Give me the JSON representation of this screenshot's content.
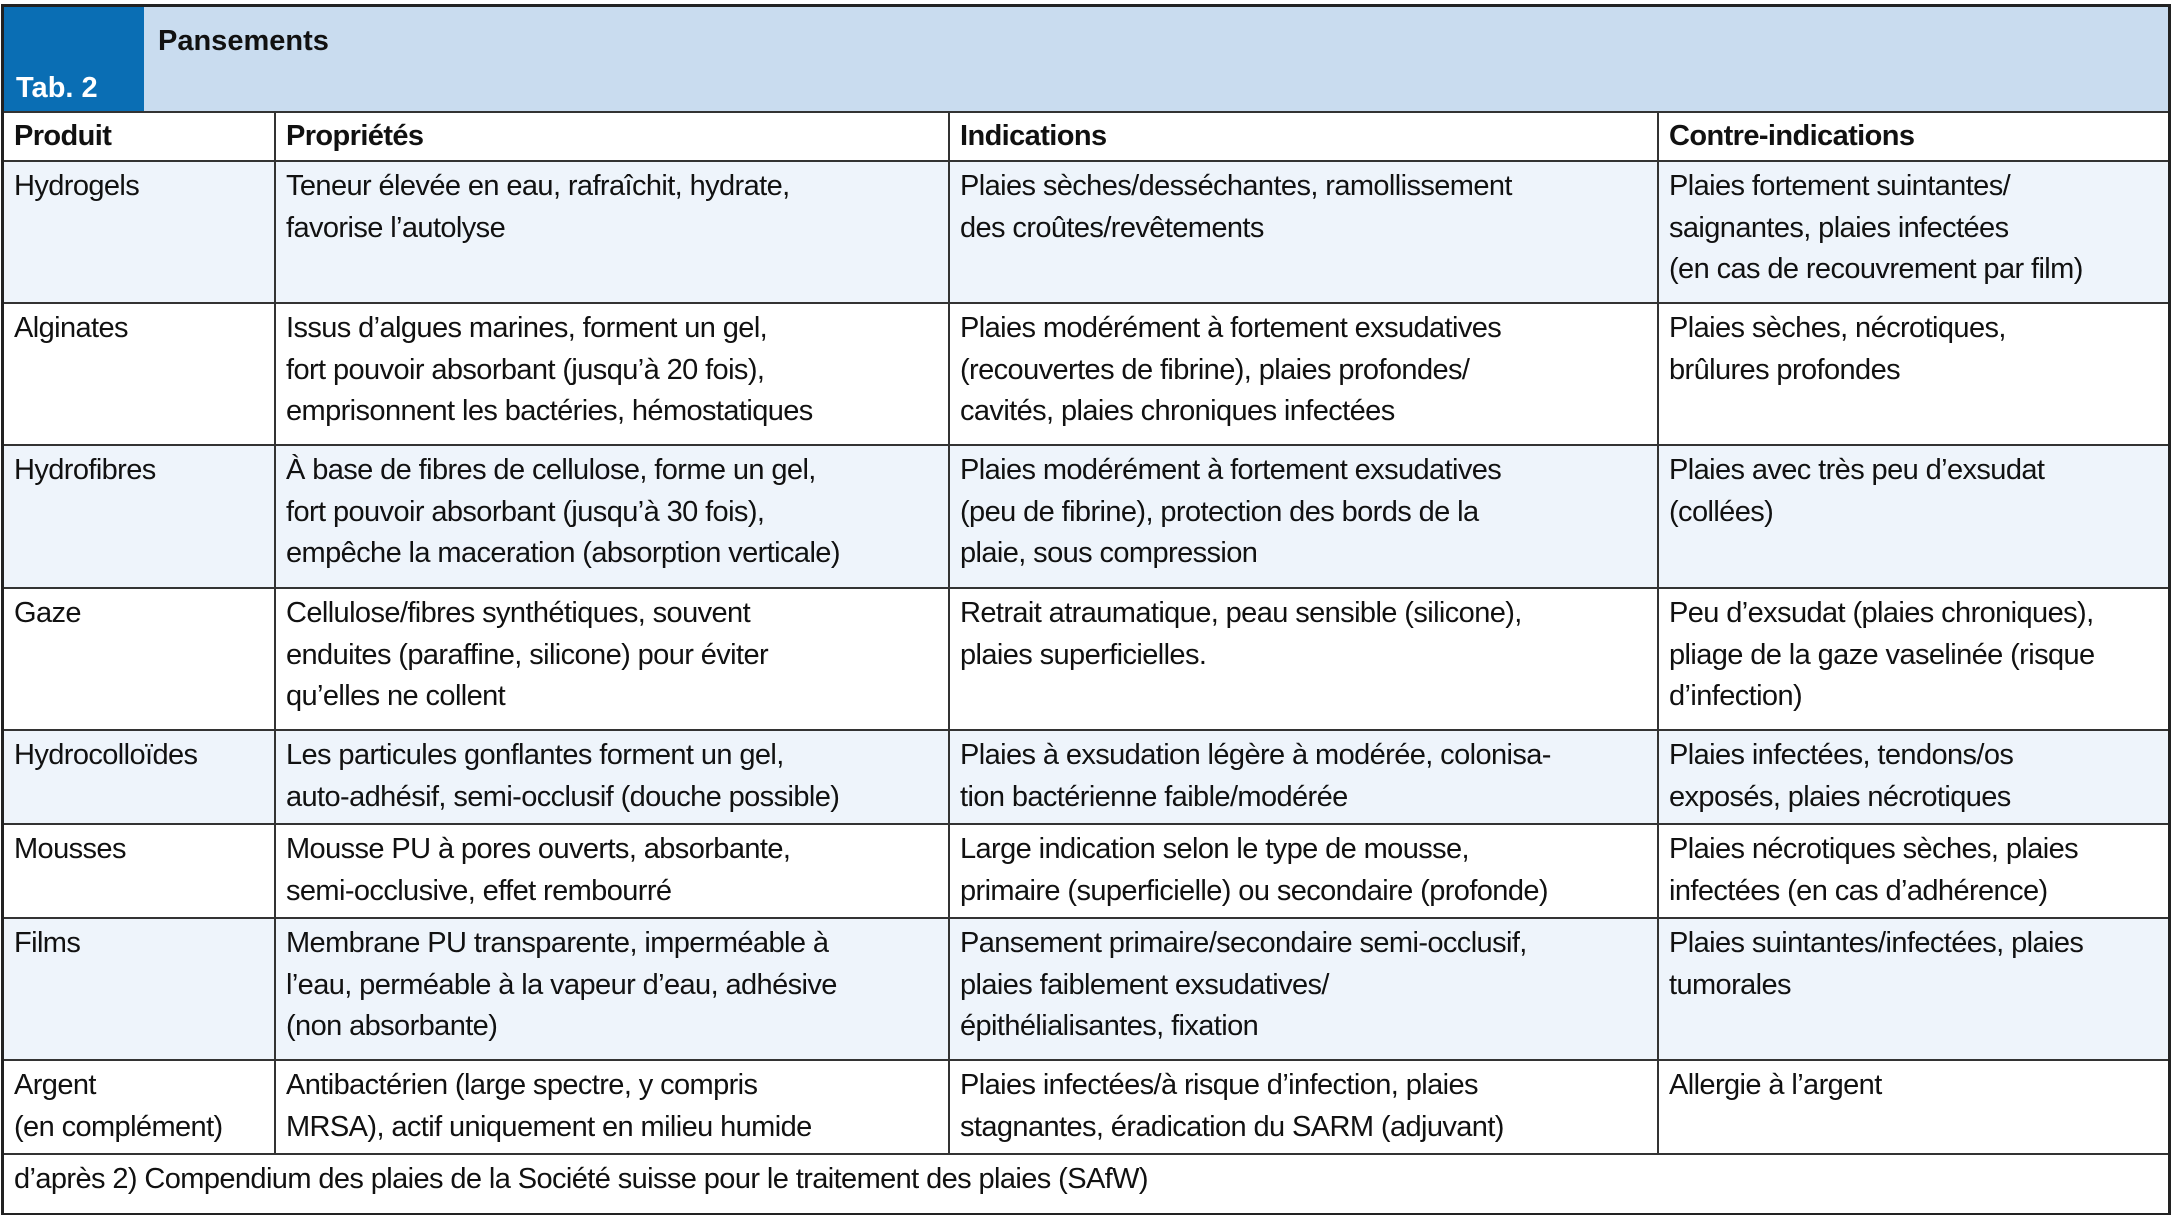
{
  "table": {
    "number": "Tab. 2",
    "title": "Pansements",
    "headers": [
      "Produit",
      "Propriétés",
      "Indications",
      "Contre-indications"
    ],
    "rows": [
      {
        "cells": [
          [
            "Hydrogels"
          ],
          [
            "Teneur élevée en eau, rafraîchit, hydrate,",
            "favorise l’autolyse"
          ],
          [
            "Plaies sèches/desséchantes, ramollissement",
            "des croûtes/revêtements"
          ],
          [
            "Plaies fortement suintantes/",
            "saignantes, plaies infectées",
            "(en cas de recouvrement par film)"
          ]
        ]
      },
      {
        "cells": [
          [
            "Alginates"
          ],
          [
            "Issus d’algues marines, forment un gel,",
            "fort pouvoir absorbant (jusqu’à 20 fois),",
            "emprisonnent les bactéries, hémostatiques"
          ],
          [
            "Plaies modérément à fortement exsudatives",
            "(recouvertes de fibrine), plaies profondes/",
            "cavités, plaies chroniques infectées"
          ],
          [
            "Plaies sèches, nécrotiques,",
            "brûlures profondes"
          ]
        ]
      },
      {
        "cells": [
          [
            "Hydrofibres"
          ],
          [
            "À base de fibres de cellulose, forme un gel,",
            "fort pouvoir absorbant (jusqu’à 30 fois),",
            "empêche la maceration (absorption verticale)"
          ],
          [
            "Plaies modérément à fortement exsudatives",
            "(peu de fibrine), protection des bords de la",
            "plaie, sous compression"
          ],
          [
            "Plaies avec très peu d’exsudat",
            "(collées)"
          ]
        ]
      },
      {
        "cells": [
          [
            "Gaze"
          ],
          [
            "Cellulose/fibres synthétiques, souvent",
            "enduites (paraffine, silicone) pour éviter",
            "qu’elles ne collent"
          ],
          [
            "Retrait atraumatique, peau sensible (silicone),",
            "plaies superficielles."
          ],
          [
            "Peu d’exsudat (plaies chroniques),",
            "pliage de la gaze vaselinée (risque",
            "d’infection)"
          ]
        ]
      },
      {
        "cells": [
          [
            "Hydrocolloïdes"
          ],
          [
            "Les particules gonflantes forment un gel,",
            "auto-adhésif, semi-occlusif (douche possible)"
          ],
          [
            "Plaies à exsudation légère à modérée, colonisa-",
            "tion bactérienne faible/modérée"
          ],
          [
            "Plaies infectées, tendons/os",
            "exposés, plaies nécrotiques"
          ]
        ]
      },
      {
        "cells": [
          [
            "Mousses"
          ],
          [
            "Mousse PU à pores ouverts, absorbante,",
            "semi-occlusive, effet rembourré"
          ],
          [
            "Large indication selon le type de mousse,",
            "primaire (superficielle) ou secondaire (profonde)"
          ],
          [
            "Plaies nécrotiques sèches, plaies",
            "infectées (en cas d’adhérence)"
          ]
        ]
      },
      {
        "cells": [
          [
            "Films"
          ],
          [
            "Membrane PU transparente, imperméable à",
            "l’eau, perméable à la vapeur d’eau, adhésive",
            "(non absorbante)"
          ],
          [
            "Pansement primaire/secondaire semi-occlusif,",
            "plaies faiblement exsudatives/",
            "épithélialisantes, fixation"
          ],
          [
            "Plaies suintantes/infectées, plaies",
            "tumorales"
          ]
        ]
      },
      {
        "cells": [
          [
            "Argent",
            "(en complément)"
          ],
          [
            "Antibactérien (large spectre, y compris",
            "MRSA), actif uniquement en milieu humide"
          ],
          [
            "Plaies infectées/à risque d’infection, plaies",
            "stagnantes, éradication du SARM (adjuvant)"
          ],
          [
            "Allergie à l’argent"
          ]
        ]
      }
    ],
    "footnote": "d’après 2) Compendium des plaies de la Société suisse pour le traitement des plaies (SAfW)"
  },
  "colors": {
    "tab_box": "#0a6eb4",
    "title_band": "#c9dcef",
    "alt_row": "#eef4fb"
  }
}
